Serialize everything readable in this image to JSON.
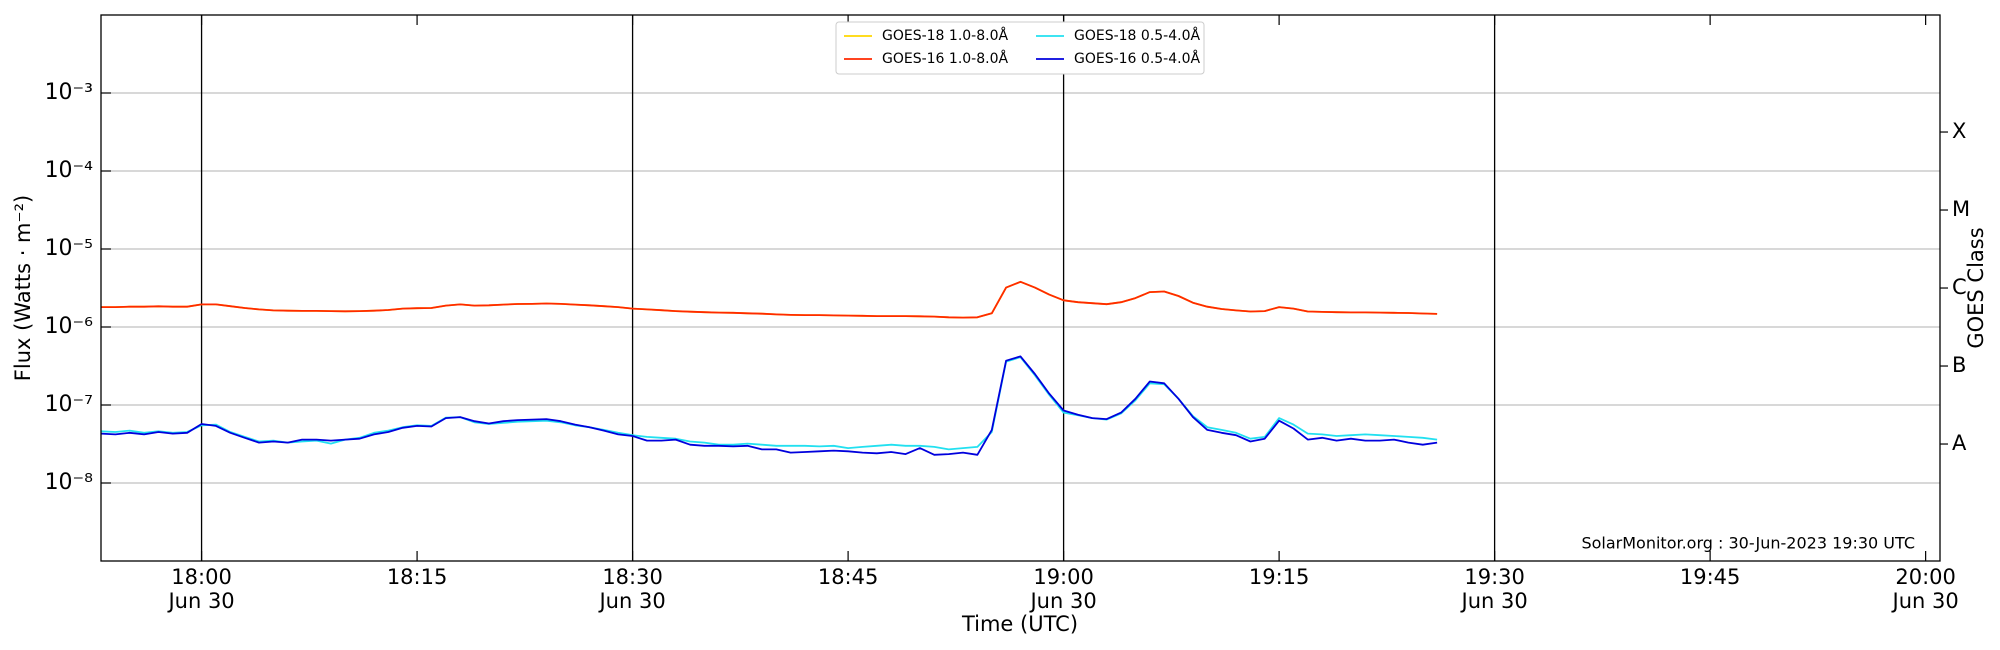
{
  "chart_data": {
    "type": "line",
    "log": true,
    "grid": true,
    "ylabel": "Flux (Watts · m⁻²)",
    "xlabel": "Time (UTC)",
    "y2label": "GOES Class",
    "footer": "SolarMonitor.org : 30-Jun-2023 19:30 UTC",
    "legend": "upper center",
    "xlim": [
      "17:53",
      "20:01"
    ],
    "xticks": [
      {
        "value": "18:00",
        "label": "18:00\nJun 30"
      },
      {
        "value": "18:15",
        "label": "18:15"
      },
      {
        "value": "18:30",
        "label": "18:30\nJun 30"
      },
      {
        "value": "18:45",
        "label": "18:45"
      },
      {
        "value": "19:00",
        "label": "19:00\nJun 30"
      },
      {
        "value": "19:15",
        "label": "19:15"
      },
      {
        "value": "19:30",
        "label": "19:30\nJun 30"
      },
      {
        "value": "19:45",
        "label": "19:45"
      },
      {
        "value": "20:00",
        "label": "20:00\nJun 30"
      }
    ],
    "vlines": [
      "18:00",
      "18:30",
      "19:00",
      "19:30"
    ],
    "ylim": [
      1e-09,
      0.01
    ],
    "yticks": [
      {
        "value": 1e-08,
        "label": "10⁻⁸"
      },
      {
        "value": 1e-07,
        "label": "10⁻⁷"
      },
      {
        "value": 1e-06,
        "label": "10⁻⁶"
      },
      {
        "value": 1e-05,
        "label": "10⁻⁵"
      },
      {
        "value": 0.0001,
        "label": "10⁻⁴"
      },
      {
        "value": 0.001,
        "label": "10⁻³"
      }
    ],
    "y2lim": [
      1e-09,
      0.01
    ],
    "y2ticks": [
      {
        "value": 3.16e-08,
        "label": "A"
      },
      {
        "value": 3.16e-07,
        "label": "B"
      },
      {
        "value": 3.16e-06,
        "label": "C"
      },
      {
        "value": 3.16e-05,
        "label": "M"
      },
      {
        "value": 0.000316,
        "label": "X"
      }
    ],
    "x": [
      "17:53",
      "17:54",
      "17:55",
      "17:56",
      "17:57",
      "17:58",
      "17:59",
      "18:00",
      "18:01",
      "18:02",
      "18:03",
      "18:04",
      "18:05",
      "18:06",
      "18:07",
      "18:08",
      "18:09",
      "18:10",
      "18:11",
      "18:12",
      "18:13",
      "18:14",
      "18:15",
      "18:16",
      "18:17",
      "18:18",
      "18:19",
      "18:20",
      "18:21",
      "18:22",
      "18:23",
      "18:24",
      "18:25",
      "18:26",
      "18:27",
      "18:28",
      "18:29",
      "18:30",
      "18:31",
      "18:32",
      "18:33",
      "18:34",
      "18:35",
      "18:36",
      "18:37",
      "18:38",
      "18:39",
      "18:40",
      "18:41",
      "18:42",
      "18:43",
      "18:44",
      "18:45",
      "18:46",
      "18:47",
      "18:48",
      "18:49",
      "18:50",
      "18:51",
      "18:52",
      "18:53",
      "18:54",
      "18:55",
      "18:56",
      "18:57",
      "18:58",
      "18:59",
      "19:00",
      "19:01",
      "19:02",
      "19:03",
      "19:04",
      "19:05",
      "19:06",
      "19:07",
      "19:08",
      "19:09",
      "19:10",
      "19:11",
      "19:12",
      "19:13",
      "19:14",
      "19:15",
      "19:16",
      "19:17",
      "19:18",
      "19:19",
      "19:20",
      "19:21",
      "19:22",
      "19:23",
      "19:24",
      "19:25",
      "19:26"
    ],
    "series": [
      {
        "name": "GOES-18 1.0-8.0Å",
        "color": "#ffd700",
        "values": [
          1.8e-06,
          1.8e-06,
          1.82e-06,
          1.82e-06,
          1.84e-06,
          1.82e-06,
          1.82e-06,
          1.95e-06,
          1.95e-06,
          1.85e-06,
          1.75e-06,
          1.68e-06,
          1.63e-06,
          1.62e-06,
          1.61e-06,
          1.61e-06,
          1.6e-06,
          1.59e-06,
          1.6e-06,
          1.62e-06,
          1.65e-06,
          1.72e-06,
          1.74e-06,
          1.75e-06,
          1.88e-06,
          1.95e-06,
          1.88e-06,
          1.9e-06,
          1.94e-06,
          1.97e-06,
          1.98e-06,
          2e-06,
          1.98e-06,
          1.94e-06,
          1.9e-06,
          1.85e-06,
          1.8e-06,
          1.72e-06,
          1.68e-06,
          1.64e-06,
          1.6e-06,
          1.57e-06,
          1.55e-06,
          1.53e-06,
          1.52e-06,
          1.5e-06,
          1.48e-06,
          1.45e-06,
          1.43e-06,
          1.42e-06,
          1.42e-06,
          1.41e-06,
          1.4e-06,
          1.39e-06,
          1.38e-06,
          1.38e-06,
          1.38e-06,
          1.37e-06,
          1.36e-06,
          1.33e-06,
          1.32e-06,
          1.33e-06,
          1.5e-06,
          3.2e-06,
          3.8e-06,
          3.2e-06,
          2.6e-06,
          2.2e-06,
          2.08e-06,
          2.02e-06,
          1.96e-06,
          2.08e-06,
          2.35e-06,
          2.8e-06,
          2.85e-06,
          2.5e-06,
          2.05e-06,
          1.82e-06,
          1.7e-06,
          1.63e-06,
          1.58e-06,
          1.6e-06,
          1.8e-06,
          1.72e-06,
          1.58e-06,
          1.56e-06,
          1.55e-06,
          1.54e-06,
          1.54e-06,
          1.53e-06,
          1.52e-06,
          1.51e-06,
          1.49e-06,
          1.47e-06
        ]
      },
      {
        "name": "GOES-16 1.0-8.0Å",
        "color": "#ff2a00",
        "values": [
          1.8e-06,
          1.8e-06,
          1.82e-06,
          1.82e-06,
          1.84e-06,
          1.82e-06,
          1.82e-06,
          1.95e-06,
          1.95e-06,
          1.85e-06,
          1.75e-06,
          1.68e-06,
          1.63e-06,
          1.62e-06,
          1.61e-06,
          1.61e-06,
          1.6e-06,
          1.59e-06,
          1.6e-06,
          1.62e-06,
          1.65e-06,
          1.72e-06,
          1.74e-06,
          1.75e-06,
          1.88e-06,
          1.95e-06,
          1.88e-06,
          1.9e-06,
          1.94e-06,
          1.97e-06,
          1.98e-06,
          2e-06,
          1.98e-06,
          1.94e-06,
          1.9e-06,
          1.85e-06,
          1.8e-06,
          1.72e-06,
          1.68e-06,
          1.64e-06,
          1.6e-06,
          1.57e-06,
          1.55e-06,
          1.53e-06,
          1.52e-06,
          1.5e-06,
          1.48e-06,
          1.45e-06,
          1.43e-06,
          1.42e-06,
          1.42e-06,
          1.41e-06,
          1.4e-06,
          1.39e-06,
          1.38e-06,
          1.38e-06,
          1.38e-06,
          1.37e-06,
          1.36e-06,
          1.33e-06,
          1.32e-06,
          1.33e-06,
          1.5e-06,
          3.2e-06,
          3.8e-06,
          3.2e-06,
          2.6e-06,
          2.2e-06,
          2.08e-06,
          2.02e-06,
          1.96e-06,
          2.08e-06,
          2.35e-06,
          2.8e-06,
          2.85e-06,
          2.5e-06,
          2.05e-06,
          1.82e-06,
          1.7e-06,
          1.63e-06,
          1.58e-06,
          1.6e-06,
          1.8e-06,
          1.72e-06,
          1.58e-06,
          1.56e-06,
          1.55e-06,
          1.54e-06,
          1.54e-06,
          1.53e-06,
          1.52e-06,
          1.51e-06,
          1.49e-06,
          1.47e-06
        ]
      },
      {
        "name": "GOES-18 0.5-4.0Å",
        "color": "#22e0f0",
        "values": [
          4.6e-08,
          4.5e-08,
          4.7e-08,
          4.4e-08,
          4.6e-08,
          4.4e-08,
          4.5e-08,
          5.5e-08,
          5.6e-08,
          4.5e-08,
          3.9e-08,
          3.4e-08,
          3.5e-08,
          3.3e-08,
          3.4e-08,
          3.5e-08,
          3.2e-08,
          3.6e-08,
          3.8e-08,
          4.4e-08,
          4.7e-08,
          5.2e-08,
          5.5e-08,
          5.4e-08,
          6.9e-08,
          7e-08,
          6e-08,
          5.7e-08,
          5.9e-08,
          6.1e-08,
          6.2e-08,
          6.3e-08,
          6e-08,
          5.5e-08,
          5.2e-08,
          4.8e-08,
          4.4e-08,
          4.1e-08,
          3.9e-08,
          3.8e-08,
          3.7e-08,
          3.4e-08,
          3.3e-08,
          3.1e-08,
          3.1e-08,
          3.2e-08,
          3.1e-08,
          3e-08,
          3e-08,
          3e-08,
          2.95e-08,
          3e-08,
          2.8e-08,
          2.9e-08,
          3e-08,
          3.1e-08,
          3e-08,
          3e-08,
          2.9e-08,
          2.7e-08,
          2.8e-08,
          2.9e-08,
          4.5e-08,
          3.6e-07,
          4.1e-07,
          2.4e-07,
          1.35e-07,
          8e-08,
          7.4e-08,
          6.8e-08,
          6.5e-08,
          7.8e-08,
          1.15e-07,
          1.9e-07,
          1.85e-07,
          1.2e-07,
          7.2e-08,
          5.2e-08,
          4.8e-08,
          4.4e-08,
          3.7e-08,
          3.9e-08,
          6.8e-08,
          5.6e-08,
          4.3e-08,
          4.2e-08,
          4e-08,
          4.1e-08,
          4.2e-08,
          4.1e-08,
          4e-08,
          3.9e-08,
          3.8e-08,
          3.6e-08
        ]
      },
      {
        "name": "GOES-16 0.5-4.0Å",
        "color": "#0000dd",
        "values": [
          4.3e-08,
          4.2e-08,
          4.4e-08,
          4.2e-08,
          4.5e-08,
          4.3e-08,
          4.4e-08,
          5.7e-08,
          5.4e-08,
          4.4e-08,
          3.8e-08,
          3.3e-08,
          3.4e-08,
          3.3e-08,
          3.6e-08,
          3.6e-08,
          3.5e-08,
          3.6e-08,
          3.7e-08,
          4.2e-08,
          4.5e-08,
          5.1e-08,
          5.4e-08,
          5.3e-08,
          6.8e-08,
          7e-08,
          6.2e-08,
          5.8e-08,
          6.2e-08,
          6.4e-08,
          6.5e-08,
          6.6e-08,
          6.2e-08,
          5.6e-08,
          5.2e-08,
          4.7e-08,
          4.2e-08,
          4e-08,
          3.5e-08,
          3.5e-08,
          3.6e-08,
          3.1e-08,
          3e-08,
          3e-08,
          2.95e-08,
          3e-08,
          2.7e-08,
          2.7e-08,
          2.45e-08,
          2.5e-08,
          2.55e-08,
          2.6e-08,
          2.55e-08,
          2.45e-08,
          2.4e-08,
          2.5e-08,
          2.35e-08,
          2.8e-08,
          2.3e-08,
          2.35e-08,
          2.45e-08,
          2.3e-08,
          4.8e-08,
          3.7e-07,
          4.2e-07,
          2.5e-07,
          1.4e-07,
          8.5e-08,
          7.5e-08,
          6.8e-08,
          6.6e-08,
          8e-08,
          1.2e-07,
          2e-07,
          1.9e-07,
          1.2e-07,
          7e-08,
          4.8e-08,
          4.4e-08,
          4.1e-08,
          3.4e-08,
          3.7e-08,
          6.3e-08,
          5e-08,
          3.6e-08,
          3.8e-08,
          3.5e-08,
          3.7e-08,
          3.5e-08,
          3.5e-08,
          3.6e-08,
          3.3e-08,
          3.1e-08,
          3.3e-08
        ]
      }
    ]
  }
}
